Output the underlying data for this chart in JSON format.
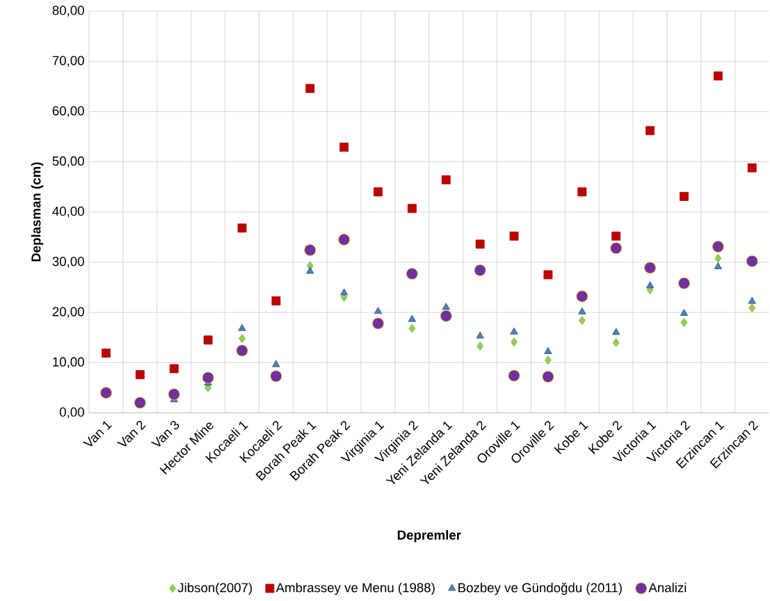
{
  "chart_data": {
    "type": "scatter",
    "xlabel": "Depremler",
    "ylabel": "Deplasman (cm)",
    "categories": [
      "Van 1",
      "Van 2",
      "Van 3",
      "Hector Mine",
      "Kocaeli 1",
      "Kocaeli 2",
      "Borah Peak 1",
      "Borah Peak 2",
      "Virginia 1",
      "Virginia 2",
      "Yeni Zelanda 1",
      "Yeni Zelanda 2",
      "Oroville 1",
      "Oroville 2",
      "Kobe 1",
      "Kobe 2",
      "Victoria 1",
      "Victoria 2",
      "Erzincan 1",
      "Erzincan 2"
    ],
    "series": [
      {
        "name": "Jibson(2007)",
        "color": "#92d050",
        "marker": "diamond",
        "values": [
          null,
          null,
          null,
          5.0,
          14.8,
          null,
          29.3,
          23.0,
          null,
          16.8,
          null,
          13.3,
          14.1,
          10.5,
          18.4,
          14.0,
          24.5,
          18.0,
          30.8,
          20.9
        ]
      },
      {
        "name": "Ambrassey ve Menu (1988)",
        "color": "#c00000",
        "marker": "square",
        "values": [
          11.9,
          7.6,
          8.8,
          14.5,
          36.8,
          22.3,
          64.6,
          52.9,
          44.0,
          40.7,
          46.4,
          33.6,
          35.2,
          27.5,
          44.0,
          35.2,
          56.2,
          43.1,
          67.1,
          48.8
        ]
      },
      {
        "name": "Bozbey ve Gündoğdu (2011)",
        "color": "#4f81bd",
        "marker": "triangle",
        "values": [
          null,
          null,
          2.6,
          5.9,
          16.8,
          9.6,
          28.2,
          23.9,
          20.2,
          18.6,
          21.0,
          15.3,
          16.1,
          12.2,
          20.1,
          16.0,
          25.3,
          19.8,
          29.1,
          22.2
        ]
      },
      {
        "name": "Analizi",
        "color": "#7030a0",
        "marker": "circle",
        "values": [
          4.0,
          2.0,
          3.7,
          7.0,
          12.4,
          7.3,
          32.4,
          34.5,
          17.8,
          27.7,
          19.3,
          28.4,
          7.4,
          7.2,
          23.2,
          32.8,
          28.9,
          25.8,
          33.1,
          30.2
        ]
      }
    ],
    "ylim": [
      0,
      80
    ],
    "yticks": [
      {
        "value": 0,
        "label": "0,00"
      },
      {
        "value": 10,
        "label": "10,00"
      },
      {
        "value": 20,
        "label": "20,00"
      },
      {
        "value": 30,
        "label": "30,00"
      },
      {
        "value": 40,
        "label": "40,00"
      },
      {
        "value": 50,
        "label": "50,00"
      },
      {
        "value": 60,
        "label": "60,00"
      },
      {
        "value": 70,
        "label": "70,00"
      },
      {
        "value": 80,
        "label": "80,00"
      }
    ],
    "grid": true,
    "legend": "bottom"
  }
}
